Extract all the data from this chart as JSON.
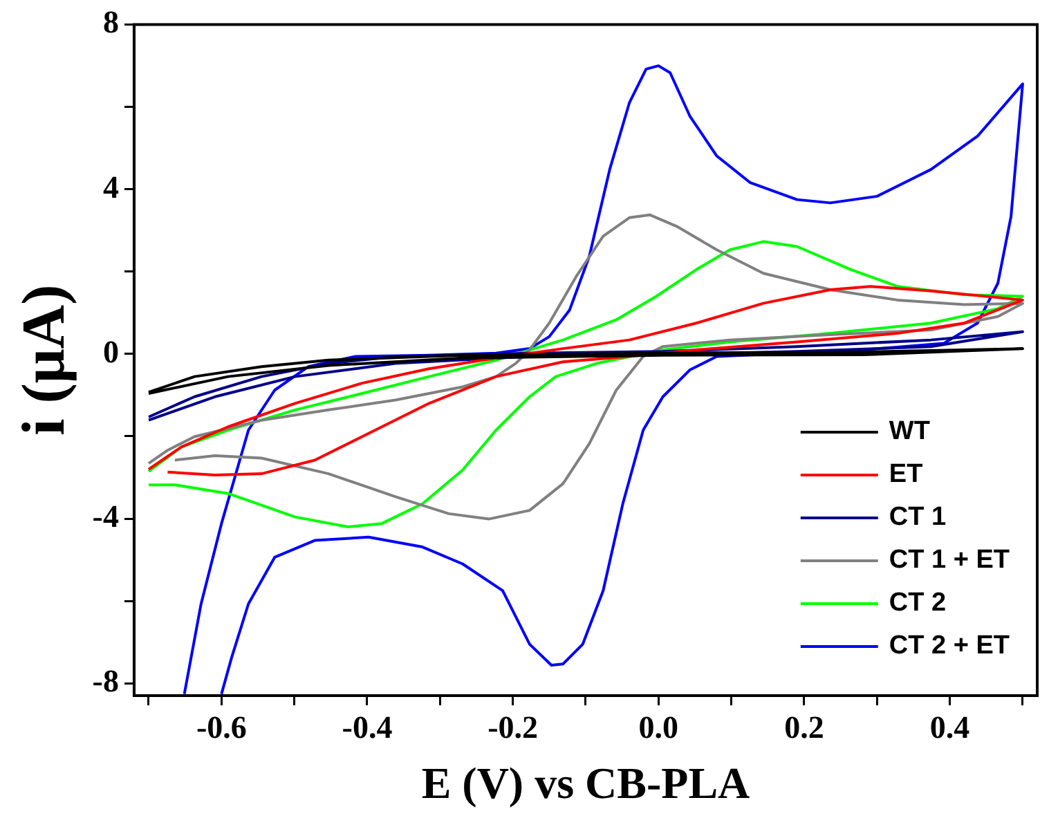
{
  "chart_data": {
    "type": "line",
    "xlabel": "E (V) vs CB-PLA",
    "ylabel": "i (μA)",
    "xlim": [
      -0.72,
      0.52
    ],
    "ylim": [
      -8.3,
      8
    ],
    "xticks": [
      {
        "value": -0.7,
        "label": null
      },
      -0.6,
      {
        "value": -0.5,
        "label": null
      },
      -0.4,
      {
        "value": -0.3,
        "label": null
      },
      -0.2,
      {
        "value": -0.1,
        "label": null
      },
      {
        "value": 0,
        "label": "0.0"
      },
      {
        "value": 0.1,
        "label": null
      },
      0.2,
      {
        "value": 0.3,
        "label": null
      },
      0.4,
      {
        "value": 0.5,
        "label": null
      }
    ],
    "yticks": [
      -8,
      {
        "value": -6,
        "label": null
      },
      -4,
      {
        "value": -2,
        "label": null
      },
      0,
      {
        "value": 2,
        "label": null
      },
      4,
      {
        "value": 6,
        "label": null
      },
      8
    ],
    "grid": false,
    "legend": "bottom right",
    "marker": "none",
    "line_style": "solid",
    "series": [
      {
        "name": "WT",
        "color": "#000000",
        "x": [
          -0.7,
          -0.637,
          -0.545,
          -0.453,
          -0.269,
          0.006,
          0.282,
          0.5,
          0.282,
          0.006,
          -0.269,
          -0.453,
          -0.591,
          -0.7
        ],
        "values": [
          -0.93,
          -0.55,
          -0.31,
          -0.15,
          -0.03,
          0.02,
          0.05,
          0.13,
          -0.02,
          -0.03,
          -0.1,
          -0.28,
          -0.55,
          -0.96
        ]
      },
      {
        "name": "ET",
        "color": "#ff0000",
        "x": [
          -0.7,
          -0.655,
          -0.591,
          -0.499,
          -0.407,
          -0.315,
          -0.223,
          -0.131,
          -0.04,
          0.052,
          0.144,
          0.236,
          0.291,
          0.374,
          0.5,
          0.42,
          0.328,
          0.19,
          0.052,
          -0.04,
          -0.131,
          -0.223,
          -0.315,
          -0.407,
          -0.472,
          -0.545,
          -0.609,
          -0.674
        ],
        "values": [
          -2.8,
          -2.26,
          -1.77,
          -1.2,
          -0.71,
          -0.36,
          -0.1,
          0.13,
          0.34,
          0.75,
          1.23,
          1.56,
          1.64,
          1.53,
          1.31,
          0.75,
          0.5,
          0.29,
          0.1,
          -0.06,
          -0.19,
          -0.55,
          -1.2,
          -2.01,
          -2.58,
          -2.91,
          -2.94,
          -2.87
        ]
      },
      {
        "name": "CT 1",
        "color": "#00008b",
        "x": [
          -0.7,
          -0.637,
          -0.545,
          -0.453,
          -0.361,
          -0.177,
          0.006,
          0.19,
          0.374,
          0.5,
          0.374,
          0.19,
          0.006,
          -0.177,
          -0.361,
          -0.499,
          -0.609,
          -0.7
        ],
        "values": [
          -1.53,
          -1.04,
          -0.55,
          -0.23,
          -0.06,
          0.02,
          0.06,
          0.18,
          0.34,
          0.54,
          0.18,
          0.06,
          -0.02,
          -0.06,
          -0.23,
          -0.55,
          -1.04,
          -1.61
        ]
      },
      {
        "name": "CT 1 + ET",
        "color": "#808080",
        "x": [
          -0.7,
          -0.674,
          -0.637,
          -0.545,
          -0.453,
          -0.361,
          -0.269,
          -0.223,
          -0.196,
          -0.177,
          -0.15,
          -0.113,
          -0.076,
          -0.04,
          -0.012,
          0.025,
          0.08,
          0.144,
          0.236,
          0.328,
          0.42,
          0.5,
          0.466,
          0.374,
          0.236,
          0.098,
          0.006,
          -0.021,
          -0.058,
          -0.095,
          -0.131,
          -0.177,
          -0.233,
          -0.288,
          -0.361,
          -0.453,
          -0.545,
          -0.609,
          -0.664
        ],
        "values": [
          -2.66,
          -2.34,
          -2.01,
          -1.61,
          -1.36,
          -1.12,
          -0.8,
          -0.55,
          -0.23,
          0.1,
          0.75,
          1.88,
          2.86,
          3.31,
          3.38,
          3.1,
          2.53,
          1.96,
          1.56,
          1.31,
          1.2,
          1.23,
          0.91,
          0.58,
          0.47,
          0.34,
          0.18,
          -0.06,
          -0.88,
          -2.18,
          -3.15,
          -3.8,
          -4.01,
          -3.88,
          -3.47,
          -2.91,
          -2.53,
          -2.47,
          -2.58
        ]
      },
      {
        "name": "CT 2",
        "color": "#00ff00",
        "x": [
          -0.7,
          -0.655,
          -0.591,
          -0.499,
          -0.407,
          -0.315,
          -0.223,
          -0.131,
          -0.058,
          -0.003,
          0.052,
          0.098,
          0.144,
          0.19,
          0.264,
          0.328,
          0.42,
          0.5,
          0.466,
          0.374,
          0.236,
          0.098,
          0.006,
          -0.085,
          -0.141,
          -0.177,
          -0.223,
          -0.269,
          -0.324,
          -0.38,
          -0.426,
          -0.499,
          -0.591,
          -0.664,
          -0.7
        ],
        "values": [
          -2.85,
          -2.26,
          -1.85,
          -1.36,
          -0.96,
          -0.55,
          -0.15,
          0.34,
          0.83,
          1.4,
          2.05,
          2.53,
          2.73,
          2.61,
          2.05,
          1.64,
          1.44,
          1.4,
          1.1,
          0.75,
          0.5,
          0.29,
          0.1,
          -0.23,
          -0.55,
          -1.04,
          -1.85,
          -2.82,
          -3.64,
          -4.12,
          -4.2,
          -3.96,
          -3.39,
          -3.18,
          -3.18
        ]
      },
      {
        "name": "CT 2 + ET",
        "color": "#0000ff",
        "x": [
          -0.651,
          -0.628,
          -0.6,
          -0.563,
          -0.527,
          -0.481,
          -0.416,
          -0.315,
          -0.223,
          -0.177,
          -0.15,
          -0.122,
          -0.095,
          -0.067,
          -0.04,
          -0.017,
          0.0,
          0.016,
          0.043,
          0.08,
          0.126,
          0.19,
          0.236,
          0.3,
          0.374,
          0.438,
          0.5,
          0.484,
          0.466,
          0.438,
          0.392,
          0.282,
          0.08,
          0.043,
          0.006,
          -0.021,
          -0.049,
          -0.076,
          -0.104,
          -0.131,
          -0.147,
          -0.177,
          -0.214,
          -0.269,
          -0.324,
          -0.398,
          -0.472,
          -0.527,
          -0.563,
          -0.586,
          -0.6
        ],
        "values": [
          -8.26,
          -6.07,
          -4.12,
          -1.85,
          -0.88,
          -0.31,
          -0.06,
          -0.03,
          0.02,
          0.13,
          0.42,
          1.07,
          2.37,
          4.48,
          6.1,
          6.92,
          7.0,
          6.83,
          5.78,
          4.81,
          4.16,
          3.75,
          3.67,
          3.83,
          4.48,
          5.29,
          6.56,
          3.34,
          1.72,
          0.75,
          0.26,
          0.1,
          -0.06,
          -0.39,
          -1.04,
          -1.85,
          -3.64,
          -5.75,
          -7.05,
          -7.53,
          -7.56,
          -7.05,
          -5.75,
          -5.1,
          -4.69,
          -4.45,
          -4.53,
          -4.94,
          -6.07,
          -7.37,
          -8.26
        ]
      }
    ]
  }
}
